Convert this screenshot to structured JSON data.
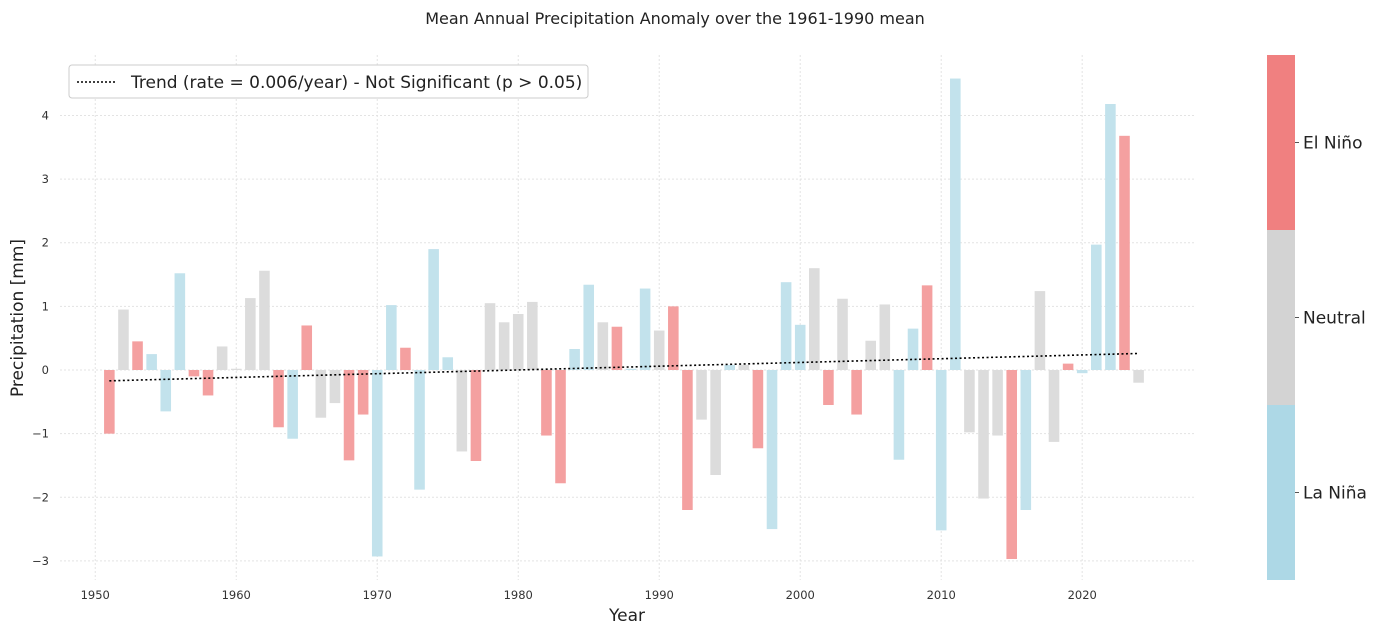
{
  "chart_data": {
    "type": "bar",
    "title": "Mean Annual Precipitation Anomaly over the 1961-1990 mean",
    "xlabel": "Year",
    "ylabel": "Precipitation [mm]",
    "xlim": [
      1947.5,
      2028.0
    ],
    "ylim": [
      -3.3,
      4.95
    ],
    "xticks": [
      1950,
      1960,
      1970,
      1980,
      1990,
      2000,
      2010,
      2020
    ],
    "yticks": [
      -3,
      -2,
      -1,
      0,
      1,
      2,
      3,
      4
    ],
    "grid": true,
    "legend": {
      "placement": "top-left",
      "entries": [
        {
          "label": "Trend (rate = 0.006/year) - Not Significant (p > 0.05)",
          "style": "dotted",
          "color": "#000000"
        }
      ]
    },
    "trend": {
      "rate_per_year": 0.006,
      "x": [
        1951,
        2024
      ],
      "y": [
        -0.17,
        0.26
      ]
    },
    "categories_legend": [
      {
        "name": "El Niño",
        "color": "#f08080"
      },
      {
        "name": "Neutral",
        "color": "#d3d3d3"
      },
      {
        "name": "La Niña",
        "color": "#add8e6"
      }
    ],
    "series": [
      {
        "name": "El Niño",
        "color": "#f4a0a0",
        "x": [
          1951,
          1953,
          1957,
          1958,
          1963,
          1965,
          1968,
          1969,
          1972,
          1977,
          1982,
          1983,
          1987,
          1991,
          1992,
          1997,
          2002,
          2004,
          2009,
          2015,
          2019,
          2023
        ],
        "values": [
          -1.0,
          0.45,
          -0.1,
          -0.4,
          -0.9,
          0.7,
          -1.42,
          -0.7,
          0.35,
          -1.43,
          -1.03,
          -1.78,
          0.68,
          1.0,
          -2.2,
          -1.23,
          -0.55,
          -0.7,
          1.33,
          -2.97,
          0.1,
          3.68
        ]
      },
      {
        "name": "Neutral",
        "color": "#dcdcdc",
        "x": [
          1952,
          1959,
          1960,
          1961,
          1962,
          1966,
          1967,
          1976,
          1978,
          1979,
          1980,
          1981,
          1986,
          1990,
          1993,
          1994,
          1996,
          2001,
          2003,
          2005,
          2006,
          2012,
          2013,
          2014,
          2017,
          2018,
          2024
        ],
        "values": [
          0.95,
          0.37,
          0.02,
          1.13,
          1.56,
          -0.75,
          -0.52,
          -1.28,
          1.05,
          0.75,
          0.88,
          1.07,
          0.75,
          0.62,
          -0.78,
          -1.65,
          0.08,
          1.6,
          1.12,
          0.46,
          1.03,
          -0.98,
          -2.02,
          -1.03,
          1.24,
          -1.13,
          -0.2
        ]
      },
      {
        "name": "La Niña",
        "color": "#c2e2ec",
        "x": [
          1954,
          1955,
          1956,
          1964,
          1970,
          1971,
          1973,
          1974,
          1975,
          1984,
          1985,
          1988,
          1989,
          1995,
          1998,
          1999,
          2000,
          2007,
          2008,
          2010,
          2011,
          2016,
          2020,
          2021,
          2022
        ],
        "values": [
          0.25,
          -0.65,
          1.52,
          -1.08,
          -2.93,
          1.02,
          -1.88,
          1.9,
          0.2,
          0.33,
          1.34,
          0.02,
          1.28,
          0.08,
          -2.5,
          1.38,
          0.71,
          -1.41,
          0.65,
          -2.52,
          4.58,
          -2.2,
          -0.05,
          1.97,
          4.18
        ]
      }
    ]
  }
}
